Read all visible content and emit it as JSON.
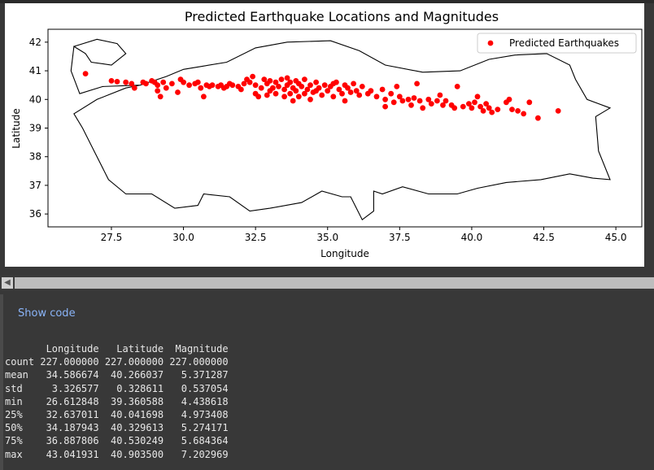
{
  "chart_data": {
    "type": "scatter",
    "title": "Predicted Earthquake Locations and Magnitudes",
    "xlabel": "Longitude",
    "ylabel": "Latitude",
    "xlim": [
      25.3,
      45.9
    ],
    "ylim": [
      35.55,
      42.45
    ],
    "xticks": [
      "27.5",
      "30.0",
      "32.5",
      "35.0",
      "37.5",
      "40.0",
      "42.5",
      "45.0"
    ],
    "yticks": [
      "36",
      "37",
      "38",
      "39",
      "40",
      "41",
      "42"
    ],
    "legend": {
      "label": "Predicted Earthquakes",
      "position": "upper right"
    },
    "point_color": "#ff0000",
    "outline_color": "#000000",
    "series": [
      {
        "name": "Predicted Earthquakes",
        "points": [
          [
            26.6,
            40.9
          ],
          [
            27.5,
            40.65
          ],
          [
            27.7,
            40.62
          ],
          [
            28.0,
            40.6
          ],
          [
            28.2,
            40.55
          ],
          [
            28.3,
            40.4
          ],
          [
            28.6,
            40.6
          ],
          [
            28.7,
            40.55
          ],
          [
            28.9,
            40.65
          ],
          [
            29.0,
            40.6
          ],
          [
            29.1,
            40.5
          ],
          [
            29.1,
            40.3
          ],
          [
            29.2,
            40.1
          ],
          [
            29.3,
            40.6
          ],
          [
            29.4,
            40.4
          ],
          [
            29.6,
            40.55
          ],
          [
            29.9,
            40.7
          ],
          [
            30.0,
            40.6
          ],
          [
            30.2,
            40.5
          ],
          [
            30.4,
            40.55
          ],
          [
            30.5,
            40.6
          ],
          [
            30.6,
            40.4
          ],
          [
            30.7,
            40.1
          ],
          [
            30.8,
            40.5
          ],
          [
            31.0,
            40.5
          ],
          [
            31.2,
            40.45
          ],
          [
            31.3,
            40.5
          ],
          [
            31.4,
            40.4
          ],
          [
            31.5,
            40.45
          ],
          [
            31.7,
            40.5
          ],
          [
            31.9,
            40.45
          ],
          [
            32.0,
            40.35
          ],
          [
            32.1,
            40.55
          ],
          [
            32.2,
            40.7
          ],
          [
            32.3,
            40.6
          ],
          [
            32.4,
            40.8
          ],
          [
            32.5,
            40.5
          ],
          [
            32.5,
            40.2
          ],
          [
            32.6,
            40.1
          ],
          [
            32.7,
            40.4
          ],
          [
            32.8,
            40.7
          ],
          [
            32.9,
            40.55
          ],
          [
            33.0,
            40.3
          ],
          [
            33.1,
            40.4
          ],
          [
            33.2,
            40.6
          ],
          [
            33.2,
            40.2
          ],
          [
            33.3,
            40.45
          ],
          [
            33.4,
            40.7
          ],
          [
            33.5,
            40.35
          ],
          [
            33.5,
            40.1
          ],
          [
            33.6,
            40.5
          ],
          [
            33.7,
            40.6
          ],
          [
            33.7,
            40.2
          ],
          [
            33.8,
            40.4
          ],
          [
            33.8,
            39.95
          ],
          [
            33.9,
            40.3
          ],
          [
            34.0,
            40.55
          ],
          [
            34.0,
            40.1
          ],
          [
            34.1,
            40.45
          ],
          [
            34.2,
            40.2
          ],
          [
            34.2,
            40.7
          ],
          [
            34.3,
            40.35
          ],
          [
            34.4,
            40.5
          ],
          [
            34.4,
            40.0
          ],
          [
            34.5,
            40.25
          ],
          [
            34.6,
            40.6
          ],
          [
            34.7,
            40.4
          ],
          [
            34.8,
            40.15
          ],
          [
            34.9,
            40.5
          ],
          [
            35.0,
            40.3
          ],
          [
            35.1,
            40.45
          ],
          [
            35.2,
            40.1
          ],
          [
            35.3,
            40.6
          ],
          [
            35.4,
            40.35
          ],
          [
            35.5,
            40.2
          ],
          [
            35.6,
            40.5
          ],
          [
            35.7,
            40.4
          ],
          [
            35.8,
            40.25
          ],
          [
            35.9,
            40.55
          ],
          [
            36.0,
            40.3
          ],
          [
            36.1,
            40.15
          ],
          [
            36.2,
            40.45
          ],
          [
            36.4,
            40.2
          ],
          [
            36.5,
            40.3
          ],
          [
            36.7,
            40.1
          ],
          [
            36.9,
            40.35
          ],
          [
            37.0,
            40.0
          ],
          [
            37.0,
            39.75
          ],
          [
            37.2,
            40.2
          ],
          [
            37.3,
            39.9
          ],
          [
            37.4,
            40.45
          ],
          [
            37.5,
            40.1
          ],
          [
            37.6,
            39.95
          ],
          [
            37.8,
            40.0
          ],
          [
            37.9,
            39.8
          ],
          [
            38.0,
            40.05
          ],
          [
            38.1,
            40.55
          ],
          [
            38.2,
            39.95
          ],
          [
            38.3,
            39.7
          ],
          [
            38.5,
            40.0
          ],
          [
            38.6,
            39.85
          ],
          [
            38.8,
            39.95
          ],
          [
            38.9,
            40.15
          ],
          [
            39.0,
            39.8
          ],
          [
            39.1,
            39.95
          ],
          [
            39.3,
            39.8
          ],
          [
            39.4,
            39.7
          ],
          [
            39.5,
            40.45
          ],
          [
            39.7,
            39.75
          ],
          [
            39.9,
            39.85
          ],
          [
            40.0,
            39.7
          ],
          [
            40.1,
            39.9
          ],
          [
            40.2,
            40.1
          ],
          [
            40.3,
            39.75
          ],
          [
            40.4,
            39.6
          ],
          [
            40.5,
            39.85
          ],
          [
            40.6,
            39.7
          ],
          [
            40.7,
            39.55
          ],
          [
            40.9,
            39.65
          ],
          [
            41.2,
            39.9
          ],
          [
            41.3,
            40.0
          ],
          [
            41.4,
            39.65
          ],
          [
            41.6,
            39.6
          ],
          [
            41.8,
            39.5
          ],
          [
            42.0,
            39.9
          ],
          [
            42.3,
            39.35
          ],
          [
            43.0,
            39.6
          ],
          [
            33.6,
            40.75
          ],
          [
            33.9,
            40.65
          ],
          [
            34.6,
            40.3
          ],
          [
            35.2,
            40.55
          ],
          [
            35.6,
            39.95
          ],
          [
            33.0,
            40.65
          ],
          [
            32.9,
            40.15
          ],
          [
            31.6,
            40.55
          ],
          [
            30.9,
            40.45
          ],
          [
            29.8,
            40.25
          ]
        ]
      }
    ]
  },
  "table": {
    "columns": [
      "Longitude",
      "Latitude",
      "Magnitude"
    ],
    "rows": [
      {
        "label": "count",
        "values": [
          "227.000000",
          "227.000000",
          "227.000000"
        ]
      },
      {
        "label": "mean",
        "values": [
          "34.586674",
          "40.266037",
          "5.371287"
        ]
      },
      {
        "label": "std",
        "values": [
          "3.326577",
          "0.328611",
          "0.537054"
        ]
      },
      {
        "label": "min",
        "values": [
          "26.612848",
          "39.360588",
          "4.438618"
        ]
      },
      {
        "label": "25%",
        "values": [
          "32.637011",
          "40.041698",
          "4.973408"
        ]
      },
      {
        "label": "50%",
        "values": [
          "34.187943",
          "40.329613",
          "5.274171"
        ]
      },
      {
        "label": "75%",
        "values": [
          "36.887806",
          "40.530249",
          "5.684364"
        ]
      },
      {
        "label": "max",
        "values": [
          "43.041931",
          "40.903500",
          "7.202969"
        ]
      }
    ]
  },
  "show_code_label": "Show code",
  "scroll_arrow_icon": "chevron-left-icon"
}
